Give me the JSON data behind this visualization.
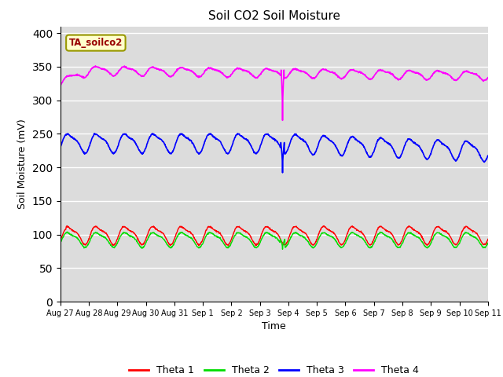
{
  "title": "Soil CO2 Soil Moisture",
  "xlabel": "Time",
  "ylabel": "Soil Moisture (mV)",
  "annotation": "TA_soilco2",
  "ylim": [
    0,
    410
  ],
  "yticks": [
    0,
    50,
    100,
    150,
    200,
    250,
    300,
    350,
    400
  ],
  "background_color": "#dcdcdc",
  "legend_entries": [
    "Theta 1",
    "Theta 2",
    "Theta 3",
    "Theta 4"
  ],
  "line_colors": [
    "red",
    "#00dd00",
    "blue",
    "magenta"
  ],
  "date_labels": [
    "Aug 27",
    "Aug 28",
    "Aug 29",
    "Aug 30",
    "Aug 31",
    "Sep 1",
    "Sep 2",
    "Sep 3",
    "Sep 4",
    "Sep 5",
    "Sep 6",
    "Sep 7",
    "Sep 8",
    "Sep 9",
    "Sep 10",
    "Sep 11"
  ],
  "n_points": 1500,
  "theta1_base": 100,
  "theta2_base": 93,
  "theta3_base": 237,
  "theta4_base": 345
}
